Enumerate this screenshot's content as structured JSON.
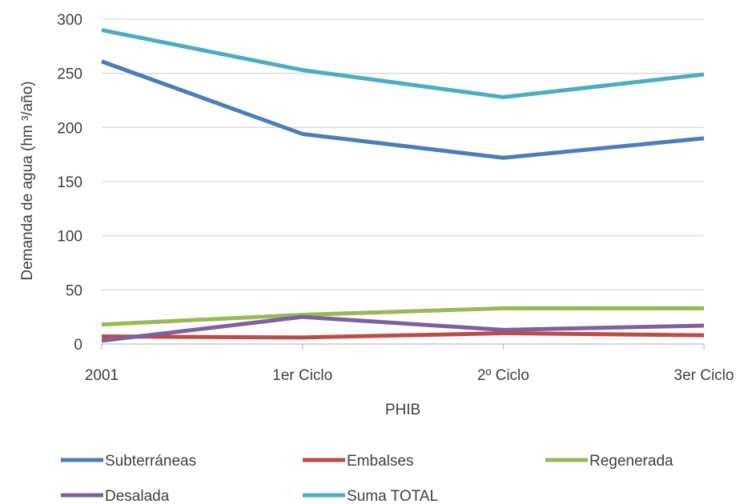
{
  "chart_data": {
    "type": "line",
    "categories": [
      "2001",
      "1er Ciclo",
      "2º Ciclo",
      "3er Ciclo"
    ],
    "xlabel": "PHIB",
    "ylabel": "Demanda de agua (hm   ³/año)",
    "ylim": [
      0,
      300
    ],
    "yticks": [
      0,
      50,
      100,
      150,
      200,
      250,
      300
    ],
    "grid": true,
    "legend_position": "bottom",
    "series": [
      {
        "name": "Subterráneas",
        "color": "#4a7ebb",
        "values": [
          261,
          194,
          172,
          190
        ]
      },
      {
        "name": "Embalses",
        "color": "#be4b48",
        "values": [
          7,
          6,
          10,
          8
        ]
      },
      {
        "name": "Regenerada",
        "color": "#98b954",
        "values": [
          18,
          27,
          33,
          33
        ]
      },
      {
        "name": "Desalada",
        "color": "#7d60a0",
        "values": [
          3,
          25,
          13,
          17
        ]
      },
      {
        "name": "Suma TOTAL",
        "color": "#4bacc6",
        "values": [
          290,
          253,
          228,
          249
        ]
      }
    ]
  }
}
